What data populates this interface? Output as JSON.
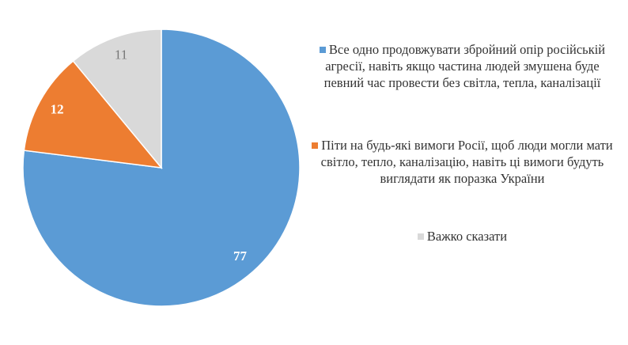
{
  "chart_data": {
    "type": "pie",
    "categories": [
      "Все одно продовжувати збройний опір російській агресії, навіть якщо частина людей змушена буде певний час провести без світла, тепла, каналізації",
      "Піти на будь-які вимоги Росії, щоб люди могли мати світло, тепло, каналізацію, навіть ці вимоги будуть виглядати як поразка України",
      "Важко сказати"
    ],
    "values": [
      77,
      12,
      11
    ],
    "colors": [
      "#5b9bd5",
      "#ed7d31",
      "#d9d9d9"
    ],
    "legend": "right"
  }
}
